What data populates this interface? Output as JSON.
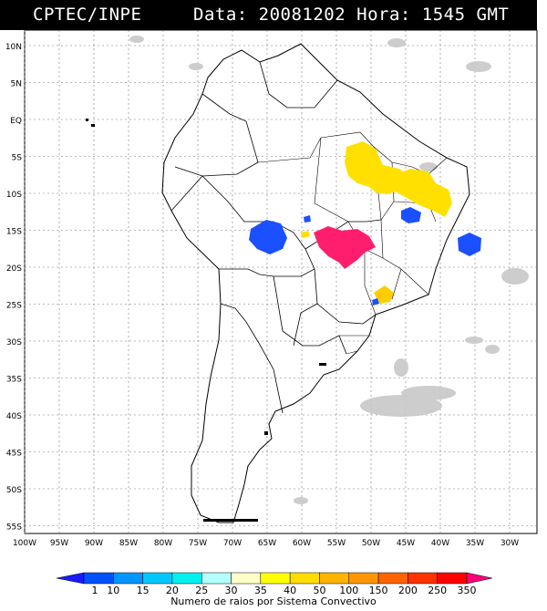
{
  "header": {
    "agency": "CPTEC/INPE",
    "date_label": "Data:",
    "date_value": "20081202",
    "time_label": "Hora:",
    "time_value": "1545",
    "time_zone": "GMT"
  },
  "axes": {
    "lat_labels": [
      "10N",
      "5N",
      "EQ",
      "5S",
      "10S",
      "15S",
      "20S",
      "25S",
      "30S",
      "35S",
      "40S",
      "45S",
      "50S",
      "55S"
    ],
    "lon_labels": [
      "100W",
      "95W",
      "90W",
      "85W",
      "80W",
      "75W",
      "70W",
      "65W",
      "60W",
      "55W",
      "50W",
      "45W",
      "40W",
      "35W",
      "30W"
    ]
  },
  "legend": {
    "title": "Numero de raios por Sistema Convectivo",
    "values": [
      "1",
      "10",
      "15",
      "20",
      "25",
      "30",
      "35",
      "40",
      "50",
      "100",
      "150",
      "200",
      "250",
      "350"
    ],
    "colors": [
      "#1a1aff",
      "#0050ff",
      "#0096ff",
      "#00c8ff",
      "#00f0f0",
      "#b4ffff",
      "#ffffc8",
      "#ffff00",
      "#ffdc00",
      "#ffb400",
      "#ff9600",
      "#ff6400",
      "#ff3200",
      "#ff0000",
      "#ff0078"
    ]
  },
  "storm_clusters": [
    {
      "name": "amazon-north-yellow",
      "color": "#ffe000"
    },
    {
      "name": "northeast-yellow",
      "color": "#ffe000"
    },
    {
      "name": "bolivia-blue",
      "color": "#1a50ff"
    },
    {
      "name": "central-pink",
      "color": "#ff1e6e"
    },
    {
      "name": "bahia-blue",
      "color": "#1a50ff"
    },
    {
      "name": "atlantic-blue",
      "color": "#1a50ff"
    },
    {
      "name": "south-brazil-orange",
      "color": "#ffcc00"
    }
  ]
}
